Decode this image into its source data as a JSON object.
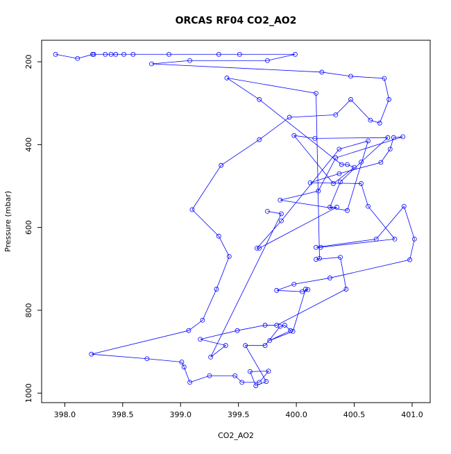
{
  "chart_data": {
    "type": "line",
    "title": "ORCAS RF04 CO2_AO2",
    "xlabel": "CO2_AO2",
    "ylabel": "Pressure (mbar)",
    "xlim": [
      397.8,
      401.156
    ],
    "ylim": [
      1023,
      148
    ],
    "xticks": [
      {
        "value": 398,
        "label": "398.0"
      },
      {
        "value": 398.5,
        "label": "398.5"
      },
      {
        "value": 399,
        "label": "399.0"
      },
      {
        "value": 399.5,
        "label": "399.5"
      },
      {
        "value": 400,
        "label": "400.0"
      },
      {
        "value": 400.5,
        "label": "400.5"
      },
      {
        "value": 401,
        "label": "401.0"
      }
    ],
    "yticks": [
      200,
      400,
      600,
      800,
      1000
    ],
    "marker": "circle",
    "series": [
      {
        "color": "#0000ff",
        "x": [
          397.92,
          398.11,
          398.24,
          398.25,
          398.35,
          398.4,
          398.44,
          398.51,
          398.59,
          398.9,
          399.33,
          399.51,
          399.99,
          399.75,
          399.08,
          398.75,
          400.22,
          400.47,
          400.76,
          400.8,
          400.72,
          400.64,
          400.47,
          400.34,
          399.94,
          399.68,
          399.35,
          399.1,
          399.33,
          399.42,
          399.31,
          399.19,
          399.07,
          398.23,
          398.71,
          399.01,
          399.03,
          399.08,
          399.25,
          399.47,
          399.53,
          399.68,
          399.76,
          399.6,
          399.65,
          399.74,
          399.56,
          399.73,
          399.86,
          399.9,
          399.95,
          399.77,
          399.97,
          400.08,
          400.1,
          400.05,
          399.83,
          399.98,
          400.29,
          400.98,
          401.02,
          400.93,
          400.69,
          400.17,
          400.21,
          400.85,
          400.62,
          400.56,
          400.12,
          400.37,
          400.73,
          400.81,
          400.84,
          400.92,
          400.34,
          400.19,
          399.86,
          400.44,
          400.62,
          400.37,
          399.87,
          399.66,
          399.68,
          400.35,
          400.29,
          400.38,
          400.56,
          400.79,
          400.16,
          399.98,
          400.32,
          400.5,
          400.44,
          400.39,
          399.68,
          399.4,
          400.17,
          400.2,
          400.17,
          400.38,
          400.43,
          399.83,
          399.73,
          399.49,
          399.17,
          399.39,
          399.26,
          399.87,
          399.75
        ],
        "values": [
          182,
          192,
          182,
          182,
          182,
          182,
          182,
          182,
          182,
          182,
          182,
          182,
          182,
          197,
          197,
          205,
          225,
          235,
          240,
          291,
          348,
          341,
          291,
          328,
          334,
          388,
          450,
          557,
          621,
          670,
          749,
          824,
          849,
          906,
          917,
          925,
          937,
          974,
          958,
          958,
          974,
          974,
          947,
          948,
          982,
          972,
          885,
          885,
          839,
          836,
          849,
          873,
          851,
          749,
          750,
          755,
          752,
          737,
          722,
          678,
          628,
          549,
          628,
          648,
          648,
          628,
          549,
          494,
          492,
          470,
          443,
          411,
          383,
          381,
          432,
          512,
          534,
          559,
          391,
          411,
          584,
          650,
          650,
          551,
          551,
          490,
          442,
          383,
          385,
          378,
          494,
          455,
          448,
          448,
          291,
          239,
          276,
          675,
          677,
          672,
          749,
          836,
          836,
          849,
          870,
          885,
          913,
          567,
          561
        ]
      }
    ]
  }
}
